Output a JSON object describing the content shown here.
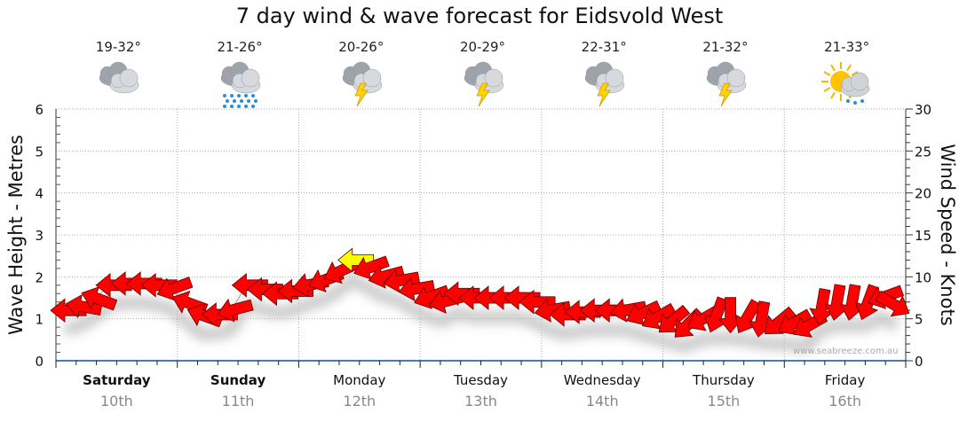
{
  "title": "7 day wind & wave forecast for Eidsvold West",
  "watermark": "www.seabreeze.com.au",
  "days": [
    {
      "name": "Saturday",
      "date": "10th",
      "temp": "19-32°",
      "icon": "cloudy-icon",
      "bold": true
    },
    {
      "name": "Sunday",
      "date": "11th",
      "temp": "21-26°",
      "icon": "rain-icon",
      "bold": true
    },
    {
      "name": "Monday",
      "date": "12th",
      "temp": "20-26°",
      "icon": "thunderstorm-icon",
      "bold": false
    },
    {
      "name": "Tuesday",
      "date": "13th",
      "temp": "20-29°",
      "icon": "thunderstorm-icon",
      "bold": false
    },
    {
      "name": "Wednesday",
      "date": "14th",
      "temp": "22-31°",
      "icon": "thunderstorm-icon",
      "bold": false
    },
    {
      "name": "Thursday",
      "date": "15th",
      "temp": "21-32°",
      "icon": "thunderstorm-icon",
      "bold": false
    },
    {
      "name": "Friday",
      "date": "16th",
      "temp": "21-33°",
      "icon": "sun-shower-icon",
      "bold": false
    }
  ],
  "colors": {
    "arrow_normal": "#ff0000",
    "arrow_strong": "#ffff00",
    "axis": "#1a4f7a"
  },
  "chart_data": {
    "type": "scatter",
    "title": "7 day wind & wave forecast for Eidsvold West",
    "ylabel_left": "Wave Height - Metres",
    "ylabel_right": "Wind Speed - Knots",
    "ylim_left": [
      0,
      6
    ],
    "ylim_right": [
      0,
      30
    ],
    "yticks_left": [
      "0",
      "1",
      "2",
      "3",
      "4",
      "5",
      "6"
    ],
    "yticks_right": [
      "0",
      "5",
      "10",
      "15",
      "20",
      "25",
      "30"
    ],
    "grid": true,
    "strong_threshold_knots": 12,
    "wind_speed_knots": [
      6,
      6.5,
      7.5,
      9,
      9.2,
      9.2,
      9,
      8.5,
      7,
      5.5,
      5.5,
      6,
      9,
      8.5,
      8,
      8.3,
      9,
      9.5,
      10.5,
      12,
      11,
      10,
      9.5,
      8.5,
      7.5,
      7,
      8,
      7.5,
      7.5,
      7.5,
      7.5,
      7,
      6,
      5.5,
      5.8,
      6,
      6,
      6,
      5.5,
      5,
      4.5,
      4,
      4.8,
      5,
      5,
      4.8,
      4.5,
      4.3,
      4.3,
      4,
      6,
      6.5,
      6.5,
      6.5,
      7.5,
      6.5
    ],
    "wind_arrow_rotation_deg": [
      0,
      10,
      20,
      0,
      0,
      0,
      0,
      -20,
      20,
      20,
      0,
      -15,
      0,
      0,
      0,
      0,
      -10,
      -20,
      -25,
      0,
      -20,
      -15,
      -10,
      -10,
      -20,
      -15,
      0,
      0,
      0,
      0,
      0,
      0,
      -10,
      0,
      0,
      0,
      0,
      -10,
      -25,
      -30,
      -40,
      -45,
      -30,
      -70,
      -90,
      -60,
      -80,
      -40,
      -30,
      -30,
      -80,
      -80,
      -80,
      -70,
      -20,
      -150
    ]
  }
}
